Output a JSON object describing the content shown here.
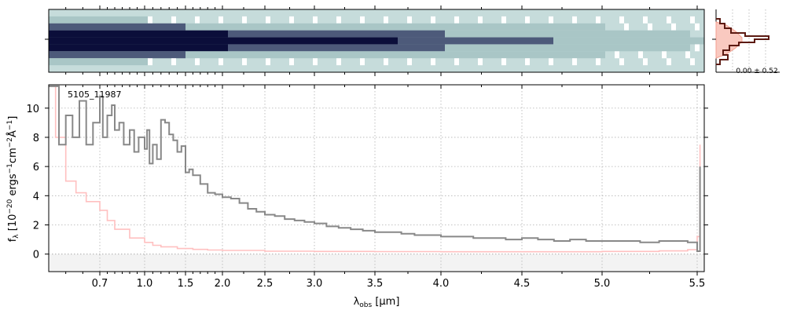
{
  "chart_data": [
    {
      "type": "heatmap",
      "panel": "2d-spectrum",
      "colormap": [
        "#0b0e3a",
        "#4d5a7a",
        "#a9c6c6",
        "#ffffff"
      ],
      "background_color": "#c6dcdb",
      "description_rows": 9
    },
    {
      "type": "line",
      "panel": "1d-spectrum",
      "annotation": "5105_11987",
      "xlabel_parts": {
        "lambda": "λ",
        "sub": "obs",
        "unit": " [μm]"
      },
      "ylabel_parts": {
        "f": "f",
        "sub": "λ",
        "pre": " [10",
        "exp1": "−20",
        "mid": " ergs",
        "exp2": "−1",
        "mid2": "cm",
        "exp3": "−2",
        "mid3": "Å",
        "exp4": "−1",
        "post": "]"
      },
      "x_ticks": [
        "0.7",
        "1.0",
        "1.5",
        "2.0",
        "2.5",
        "3.0",
        "3.5",
        "4.0",
        "4.5",
        "5.0",
        "5.5"
      ],
      "x_tick_values": [
        0.7,
        1.0,
        1.5,
        2.0,
        2.5,
        3.0,
        3.5,
        4.0,
        4.5,
        5.0,
        5.5
      ],
      "y_ticks": [
        "0",
        "2",
        "4",
        "6",
        "8",
        "10"
      ],
      "y_tick_values": [
        0,
        2,
        4,
        6,
        8,
        10
      ],
      "xlim": [
        0.55,
        5.55
      ],
      "ylim": [
        -1.2,
        11.6
      ],
      "grid": true,
      "series": [
        {
          "role": "flux",
          "color": "#888888",
          "x": [
            0.55,
            0.58,
            0.6,
            0.62,
            0.64,
            0.66,
            0.68,
            0.7,
            0.72,
            0.75,
            0.78,
            0.8,
            0.83,
            0.86,
            0.9,
            0.93,
            0.96,
            1.0,
            1.03,
            1.06,
            1.1,
            1.15,
            1.2,
            1.25,
            1.3,
            1.35,
            1.4,
            1.45,
            1.5,
            1.55,
            1.6,
            1.7,
            1.8,
            1.9,
            2.0,
            2.1,
            2.2,
            2.3,
            2.4,
            2.5,
            2.6,
            2.7,
            2.8,
            2.9,
            3.0,
            3.1,
            3.2,
            3.3,
            3.4,
            3.5,
            3.6,
            3.7,
            3.8,
            3.9,
            4.0,
            4.1,
            4.2,
            4.3,
            4.4,
            4.5,
            4.6,
            4.7,
            4.8,
            4.9,
            5.0,
            5.1,
            5.2,
            5.3,
            5.4,
            5.45,
            5.5,
            5.52
          ],
          "y": [
            11.5,
            7.5,
            9.5,
            8.0,
            10.5,
            7.5,
            9.0,
            10.8,
            8.0,
            9.5,
            10.2,
            8.5,
            9.0,
            7.5,
            8.5,
            7.0,
            8.0,
            7.2,
            8.5,
            6.2,
            7.5,
            6.5,
            9.2,
            9.0,
            8.2,
            7.8,
            7.0,
            7.4,
            5.6,
            5.8,
            5.4,
            4.8,
            4.2,
            4.1,
            3.9,
            3.8,
            3.5,
            3.1,
            2.9,
            2.7,
            2.6,
            2.4,
            2.3,
            2.2,
            2.1,
            1.9,
            1.8,
            1.7,
            1.6,
            1.5,
            1.5,
            1.4,
            1.3,
            1.3,
            1.2,
            1.2,
            1.1,
            1.1,
            1.0,
            1.1,
            1.0,
            0.9,
            1.0,
            0.9,
            0.9,
            0.9,
            0.8,
            0.9,
            0.9,
            0.8,
            0.2,
            6.0
          ]
        },
        {
          "role": "error",
          "color": "#ffc0c0",
          "x": [
            0.55,
            0.57,
            0.6,
            0.63,
            0.66,
            0.7,
            0.75,
            0.8,
            0.9,
            1.0,
            1.1,
            1.2,
            1.4,
            1.6,
            1.8,
            2.0,
            2.5,
            3.0,
            3.5,
            4.0,
            4.5,
            5.0,
            5.3,
            5.45,
            5.5,
            5.52
          ],
          "y": [
            11.5,
            8.0,
            5.0,
            4.2,
            3.6,
            3.0,
            2.3,
            1.7,
            1.1,
            0.8,
            0.6,
            0.5,
            0.38,
            0.32,
            0.28,
            0.25,
            0.2,
            0.18,
            0.17,
            0.16,
            0.16,
            0.18,
            0.22,
            0.3,
            1.2,
            7.5
          ]
        }
      ]
    },
    {
      "type": "line",
      "panel": "histogram",
      "annotation": "0.00 ± 0.52",
      "series": [
        {
          "role": "hist",
          "color": "#5c1a12"
        },
        {
          "role": "gauss",
          "color": "#f4a090"
        }
      ]
    }
  ]
}
